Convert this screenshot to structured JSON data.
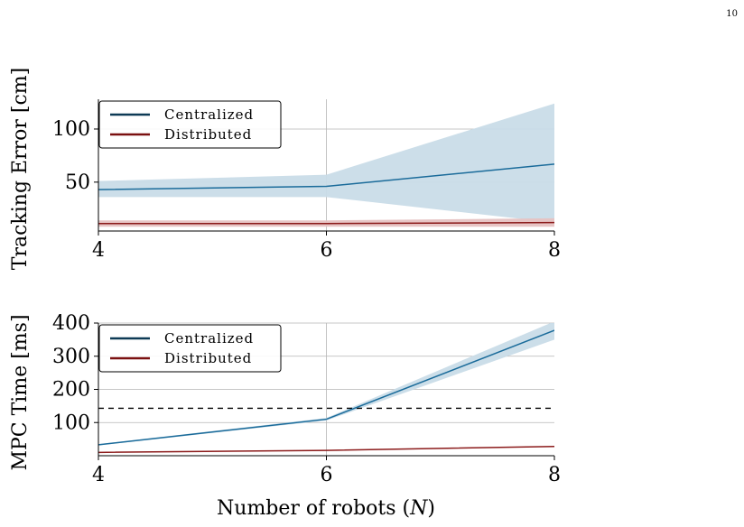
{
  "page_number": "10",
  "chart_data": [
    {
      "type": "line",
      "ylabel": "Tracking Error [cm]",
      "xlabel": "",
      "x": [
        4,
        6,
        8
      ],
      "xticks": [
        "4",
        "6",
        "8"
      ],
      "yticks": [
        50,
        100
      ],
      "xlim": [
        4,
        8
      ],
      "ylim": [
        4,
        128
      ],
      "grid": true,
      "legend_position": "top-left",
      "series": [
        {
          "name": "Centralized",
          "color": "#1a6b9a",
          "legend_color": "#0d3a55",
          "band_color": "#c9dce8",
          "values": [
            43,
            46,
            67
          ],
          "lower": [
            36,
            36,
            12
          ],
          "upper": [
            51,
            57,
            124
          ]
        },
        {
          "name": "Distributed",
          "color": "#8b1a1a",
          "legend_color": "#7a1010",
          "band_color": "#e6c2c2",
          "values": [
            11,
            11,
            12
          ],
          "lower": [
            8,
            8,
            8
          ],
          "upper": [
            14,
            14,
            16
          ]
        }
      ]
    },
    {
      "type": "line",
      "ylabel": "MPC Time [ms]",
      "xlabel": "Number of robots (N)",
      "xlabel_parts": [
        "Number of robots (",
        "N",
        ")"
      ],
      "x": [
        4,
        6,
        8
      ],
      "xticks": [
        "4",
        "6",
        "8"
      ],
      "yticks": [
        100,
        200,
        300,
        400
      ],
      "xlim": [
        4,
        8
      ],
      "ylim": [
        0,
        400
      ],
      "grid": true,
      "legend_position": "top-left",
      "reference_line": {
        "y": 143,
        "style": "dashed",
        "color": "#000000"
      },
      "series": [
        {
          "name": "Centralized",
          "color": "#1a6b9a",
          "legend_color": "#0d3a55",
          "band_color": "#c9dce8",
          "values": [
            33,
            110,
            378
          ],
          "lower": [
            31,
            106,
            350
          ],
          "upper": [
            35,
            114,
            405
          ]
        },
        {
          "name": "Distributed",
          "color": "#8b1a1a",
          "legend_color": "#7a1010",
          "band_color": "#e6c2c2",
          "values": [
            10,
            16,
            28
          ],
          "lower": [
            9,
            15,
            27
          ],
          "upper": [
            11,
            17,
            29
          ]
        }
      ]
    }
  ]
}
